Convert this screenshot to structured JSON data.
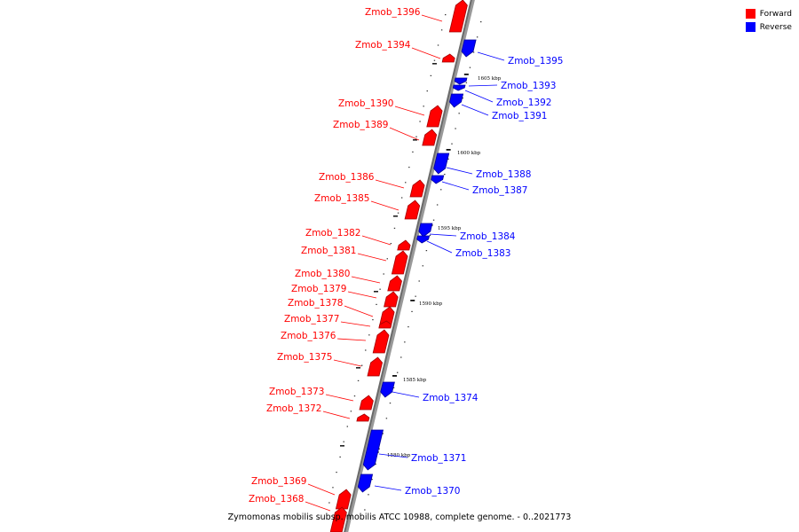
{
  "legend": {
    "forward_label": "Forward",
    "reverse_label": "Reverse",
    "forward_color": "#ff0000",
    "reverse_color": "#0000ff"
  },
  "caption": "Zymomonas mobilis subsp. mobilis ATCC 10988, complete genome. - 0..2021773",
  "ticks": [
    "1605 kbp",
    "1600 kbp",
    "1595 kbp",
    "1590 kbp",
    "1585 kbp",
    "1580 kbp"
  ],
  "genes": [
    {
      "name": "Zmob_1396",
      "strand": "forward"
    },
    {
      "name": "Zmob_1395",
      "strand": "reverse"
    },
    {
      "name": "Zmob_1394",
      "strand": "forward"
    },
    {
      "name": "Zmob_1393",
      "strand": "reverse"
    },
    {
      "name": "Zmob_1392",
      "strand": "reverse"
    },
    {
      "name": "Zmob_1391",
      "strand": "reverse"
    },
    {
      "name": "Zmob_1390",
      "strand": "forward"
    },
    {
      "name": "Zmob_1389",
      "strand": "forward"
    },
    {
      "name": "Zmob_1388",
      "strand": "reverse"
    },
    {
      "name": "Zmob_1387",
      "strand": "reverse"
    },
    {
      "name": "Zmob_1386",
      "strand": "forward"
    },
    {
      "name": "Zmob_1385",
      "strand": "forward"
    },
    {
      "name": "Zmob_1384",
      "strand": "reverse"
    },
    {
      "name": "Zmob_1383",
      "strand": "reverse"
    },
    {
      "name": "Zmob_1382",
      "strand": "forward"
    },
    {
      "name": "Zmob_1381",
      "strand": "forward"
    },
    {
      "name": "Zmob_1380",
      "strand": "forward"
    },
    {
      "name": "Zmob_1379",
      "strand": "forward"
    },
    {
      "name": "Zmob_1378",
      "strand": "forward"
    },
    {
      "name": "Zmob_1377",
      "strand": "forward"
    },
    {
      "name": "Zmob_1376",
      "strand": "forward"
    },
    {
      "name": "Zmob_1375",
      "strand": "forward"
    },
    {
      "name": "Zmob_1374",
      "strand": "reverse"
    },
    {
      "name": "Zmob_1373",
      "strand": "forward"
    },
    {
      "name": "Zmob_1372",
      "strand": "forward"
    },
    {
      "name": "Zmob_1371",
      "strand": "reverse"
    },
    {
      "name": "Zmob_1370",
      "strand": "reverse"
    },
    {
      "name": "Zmob_1369",
      "strand": "forward"
    },
    {
      "name": "Zmob_1368",
      "strand": "forward"
    }
  ]
}
